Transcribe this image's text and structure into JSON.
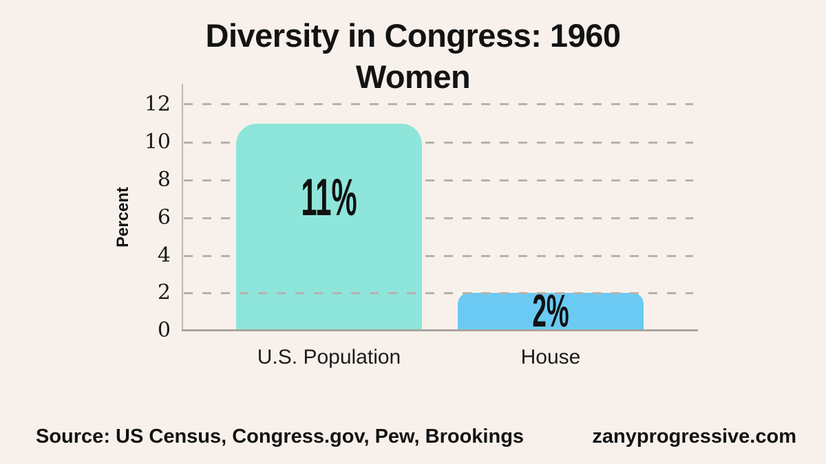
{
  "title": {
    "line1": "Diversity in Congress: 1960",
    "line2": "Women"
  },
  "footer": {
    "source": "Source: US Census, Congress.gov, Pew, Brookings",
    "site": "zanyprogressive.com"
  },
  "chart_data": {
    "type": "bar",
    "title": "Diversity in Congress: 1960 Women",
    "xlabel": "",
    "ylabel": "Percent",
    "categories": [
      "U.S. Population",
      "House"
    ],
    "values": [
      11,
      2
    ],
    "value_labels": [
      "11%",
      "2%"
    ],
    "bar_colors": [
      "#8EE5DA",
      "#6BCAF3"
    ],
    "ytick_labels": [
      "0",
      "2",
      "4",
      "6",
      "8",
      "10",
      "12"
    ],
    "ylim": [
      0,
      12
    ],
    "grid": "horizontal dashed gridlines at every 2 units",
    "legend": "none",
    "background_color": "#F8F1EB"
  }
}
